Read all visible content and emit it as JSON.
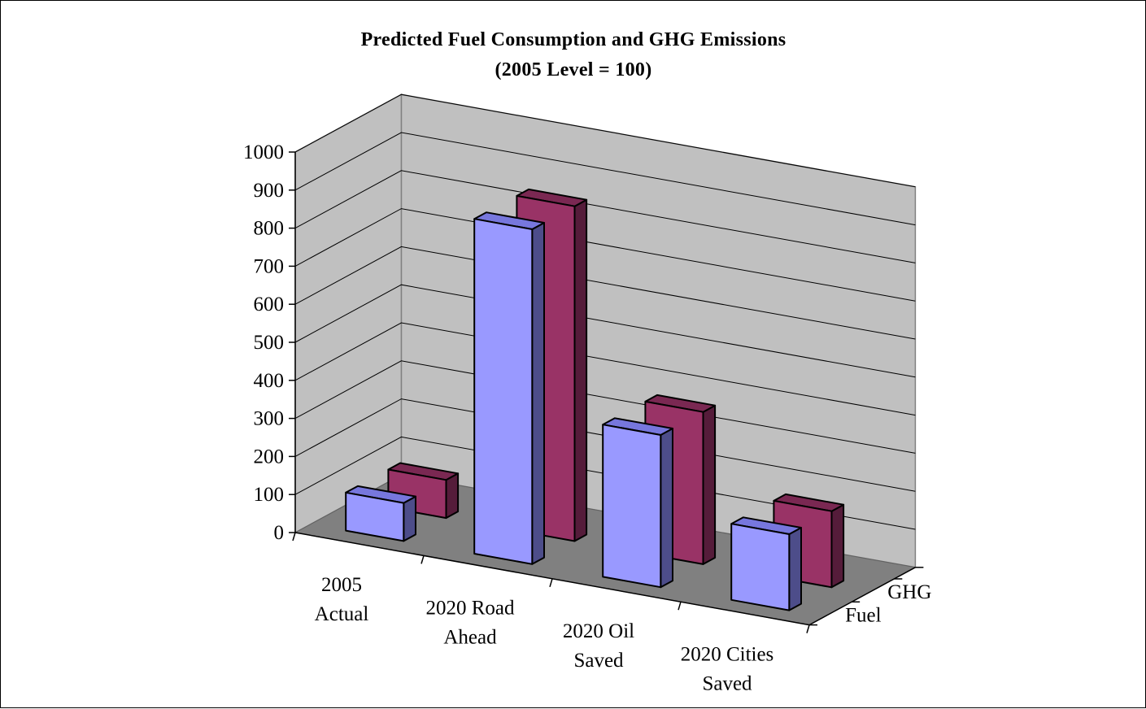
{
  "chart_data": {
    "type": "bar",
    "title": "Predicted Fuel Consumption and GHG Emissions",
    "subtitle": "(2005 Level = 100)",
    "categories": [
      "2005 Actual",
      "2020 Road Ahead",
      "2020 Oil Saved",
      "2020 Cities Saved"
    ],
    "category_lines": [
      [
        "2005",
        "Actual"
      ],
      [
        "2020 Road",
        "Ahead"
      ],
      [
        "2020 Oil",
        "Saved"
      ],
      [
        "2020 Cities",
        "Saved"
      ]
    ],
    "series": [
      {
        "name": "Fuel",
        "values": [
          100,
          880,
          400,
          200
        ],
        "color": "#9999ff"
      },
      {
        "name": "GHG",
        "values": [
          100,
          880,
          400,
          200
        ],
        "color": "#993366"
      }
    ],
    "yticks": [
      "0",
      "100",
      "200",
      "300",
      "400",
      "500",
      "600",
      "700",
      "800",
      "900",
      "1000"
    ],
    "ylim": [
      0,
      1000
    ],
    "grid": true,
    "three_d": true,
    "colors": {
      "wall": "#c0c0c0",
      "floor": "#808080",
      "fuel_front": "#9999ff",
      "fuel_top": "#7777dd",
      "fuel_side": "#4d4d8a",
      "ghg_front": "#993366",
      "ghg_top": "#7a2852",
      "ghg_side": "#551c3a"
    }
  }
}
